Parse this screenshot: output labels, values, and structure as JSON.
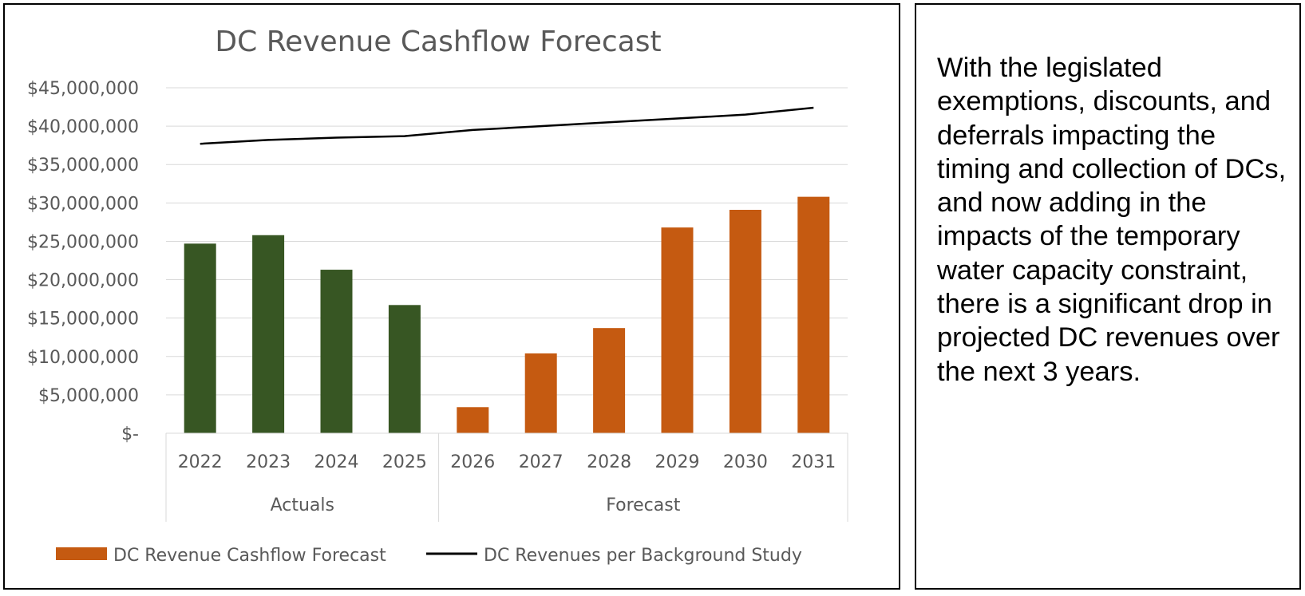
{
  "chart_data": {
    "type": "bar",
    "title": "DC Revenue Cashflow Forecast",
    "categories": [
      "2022",
      "2023",
      "2024",
      "2025",
      "2026",
      "2027",
      "2028",
      "2029",
      "2030",
      "2031"
    ],
    "groups": [
      {
        "label": "Actuals",
        "categories": [
          "2022",
          "2023",
          "2024",
          "2025"
        ]
      },
      {
        "label": "Forecast",
        "categories": [
          "2026",
          "2027",
          "2028",
          "2029",
          "2030",
          "2031"
        ]
      }
    ],
    "y_ticks": [
      "$-",
      "$5,000,000",
      "$10,000,000",
      "$15,000,000",
      "$20,000,000",
      "$25,000,000",
      "$30,000,000",
      "$35,000,000",
      "$40,000,000",
      "$45,000,000"
    ],
    "ylim": [
      0,
      45000000
    ],
    "grid": true,
    "legend_position": "bottom",
    "series": [
      {
        "name": "DC Revenue Cashflow Forecast",
        "kind": "bar",
        "color": "#c55a11",
        "actuals_color": "#375623",
        "values": [
          24700000,
          25800000,
          21300000,
          16700000,
          3400000,
          10400000,
          13700000,
          26800000,
          29100000,
          30800000
        ]
      },
      {
        "name": "DC Revenues per Background Study",
        "kind": "line",
        "color": "#000000",
        "values": [
          37700000,
          38200000,
          38500000,
          38700000,
          39500000,
          40000000,
          40500000,
          41000000,
          41500000,
          42400000
        ]
      }
    ]
  },
  "commentary": "With the legislated exemptions, discounts, and deferrals impacting the timing and collection of DCs, and now adding in the impacts of the temporary water capacity constraint, there is a significant drop in projected DC revenues over the next 3 years."
}
